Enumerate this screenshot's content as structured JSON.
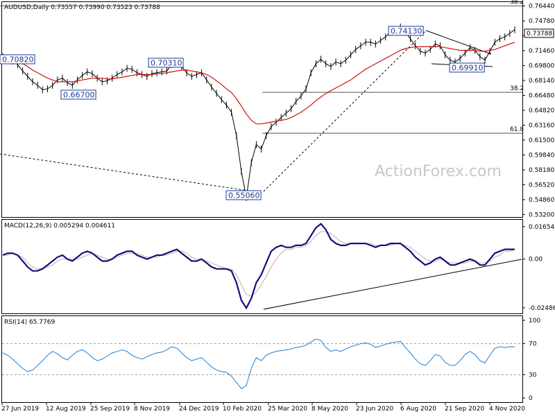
{
  "chart_data": [
    {
      "type": "line",
      "panel": "price",
      "title": "AUDUSD,Daily  0.73557 0.73990 0.73523 0.73788",
      "watermark": "ActionForex.com",
      "last_price_label": "0.73788",
      "y_ticks": [
        "0.76440",
        "0.74780",
        "0.73120",
        "0.71460",
        "0.69800",
        "0.68140",
        "0.66480",
        "0.64820",
        "0.63160",
        "0.61500",
        "0.59840",
        "0.58180",
        "0.56520",
        "0.54860",
        "0.53200"
      ],
      "y_tick_values": [
        0.7644,
        0.7478,
        0.7312,
        0.7146,
        0.698,
        0.6814,
        0.6648,
        0.6482,
        0.6316,
        0.615,
        0.5984,
        0.5818,
        0.5652,
        0.5486,
        0.532
      ],
      "ylim": [
        0.53,
        0.768
      ],
      "x_ticks": [
        "27 Jun 2019",
        "12 Aug 2019",
        "25 Sep 2019",
        "8 Nov 2019",
        "24 Dec 2019",
        "10 Feb 2020",
        "25 Mar 2020",
        "8 May 2020",
        "23 Jun 2020",
        "6 Aug 2020",
        "21 Sep 2020",
        "4 Nov 2020"
      ],
      "price_series": [
        0.708,
        0.706,
        0.703,
        0.699,
        0.692,
        0.686,
        0.68,
        0.676,
        0.671,
        0.672,
        0.676,
        0.682,
        0.684,
        0.679,
        0.676,
        0.682,
        0.687,
        0.691,
        0.689,
        0.684,
        0.68,
        0.681,
        0.684,
        0.688,
        0.691,
        0.695,
        0.694,
        0.69,
        0.688,
        0.686,
        0.689,
        0.69,
        0.691,
        0.692,
        0.699,
        0.702,
        0.697,
        0.69,
        0.686,
        0.688,
        0.69,
        0.682,
        0.674,
        0.667,
        0.66,
        0.654,
        0.646,
        0.62,
        0.58,
        0.551,
        0.59,
        0.61,
        0.605,
        0.62,
        0.63,
        0.635,
        0.64,
        0.645,
        0.65,
        0.658,
        0.664,
        0.672,
        0.69,
        0.7,
        0.705,
        0.7,
        0.697,
        0.702,
        0.7,
        0.704,
        0.71,
        0.716,
        0.72,
        0.724,
        0.724,
        0.722,
        0.726,
        0.73,
        0.735,
        0.738,
        0.741,
        0.735,
        0.728,
        0.72,
        0.714,
        0.712,
        0.716,
        0.722,
        0.72,
        0.71,
        0.704,
        0.702,
        0.706,
        0.712,
        0.718,
        0.715,
        0.708,
        0.704,
        0.714,
        0.724,
        0.728,
        0.73,
        0.734,
        0.738
      ],
      "ma_series": [
        0.706,
        0.705,
        0.704,
        0.702,
        0.7,
        0.697,
        0.693,
        0.69,
        0.687,
        0.684,
        0.682,
        0.68,
        0.68,
        0.68,
        0.68,
        0.681,
        0.682,
        0.683,
        0.684,
        0.684,
        0.684,
        0.683,
        0.683,
        0.684,
        0.685,
        0.686,
        0.687,
        0.688,
        0.688,
        0.688,
        0.688,
        0.689,
        0.689,
        0.69,
        0.691,
        0.692,
        0.693,
        0.693,
        0.692,
        0.691,
        0.69,
        0.688,
        0.685,
        0.681,
        0.677,
        0.672,
        0.668,
        0.661,
        0.653,
        0.644,
        0.637,
        0.633,
        0.633,
        0.634,
        0.635,
        0.636,
        0.637,
        0.638,
        0.64,
        0.643,
        0.646,
        0.65,
        0.654,
        0.659,
        0.663,
        0.667,
        0.67,
        0.673,
        0.676,
        0.679,
        0.682,
        0.686,
        0.69,
        0.694,
        0.697,
        0.7,
        0.703,
        0.706,
        0.709,
        0.712,
        0.715,
        0.717,
        0.718,
        0.719,
        0.719,
        0.719,
        0.719,
        0.719,
        0.719,
        0.718,
        0.717,
        0.716,
        0.715,
        0.715,
        0.715,
        0.715,
        0.714,
        0.714,
        0.715,
        0.716,
        0.718,
        0.72,
        0.722,
        0.724
      ],
      "annotations": [
        {
          "text": "0.70820",
          "x_frac": 0.0,
          "y": 0.7082
        },
        {
          "text": "0.66700",
          "x_frac": 0.11,
          "y": 0.667
        },
        {
          "text": "0.70310",
          "x_frac": 0.29,
          "y": 0.7031
        },
        {
          "text": "0.55060",
          "x_frac": 0.44,
          "y": 0.5506
        },
        {
          "text": "0.74130",
          "x_frac": 0.75,
          "y": 0.7413
        },
        {
          "text": "0.69910",
          "x_frac": 0.81,
          "y": 0.6991
        }
      ],
      "fib_levels": [
        {
          "text": "38.2",
          "y": 0.7644
        },
        {
          "text": "38.2",
          "y": 0.6682
        },
        {
          "text": "61.8",
          "y": 0.6226
        }
      ]
    },
    {
      "type": "line",
      "panel": "macd",
      "title": "MACD(12,26,9) 0.005294 0.004611",
      "y_ticks": [
        "0.01654",
        "0.00",
        "-0.02486"
      ],
      "ylim": [
        -0.027,
        0.019
      ],
      "macd_series": [
        0.002,
        0.003,
        0.003,
        0.002,
        -0.001,
        -0.004,
        -0.006,
        -0.006,
        -0.005,
        -0.003,
        -0.001,
        0.001,
        0.002,
        0.0,
        -0.001,
        0.001,
        0.003,
        0.004,
        0.003,
        0.001,
        -0.001,
        -0.001,
        0.0,
        0.002,
        0.003,
        0.004,
        0.004,
        0.002,
        0.001,
        0.0,
        0.001,
        0.002,
        0.002,
        0.003,
        0.004,
        0.005,
        0.003,
        0.001,
        -0.001,
        -0.001,
        0.0,
        -0.002,
        -0.004,
        -0.005,
        -0.005,
        -0.005,
        -0.006,
        -0.012,
        -0.021,
        -0.025,
        -0.02,
        -0.012,
        -0.008,
        -0.002,
        0.004,
        0.006,
        0.007,
        0.006,
        0.006,
        0.007,
        0.007,
        0.008,
        0.012,
        0.016,
        0.018,
        0.015,
        0.01,
        0.008,
        0.007,
        0.007,
        0.008,
        0.008,
        0.008,
        0.008,
        0.007,
        0.006,
        0.007,
        0.007,
        0.008,
        0.008,
        0.008,
        0.006,
        0.004,
        0.001,
        -0.001,
        -0.003,
        -0.002,
        0.0,
        0.001,
        -0.001,
        -0.003,
        -0.003,
        -0.002,
        -0.001,
        0.0,
        -0.001,
        -0.003,
        -0.003,
        0.0,
        0.003,
        0.004,
        0.005,
        0.005,
        0.005
      ],
      "signal_series": [
        0.002,
        0.002,
        0.003,
        0.002,
        0.001,
        -0.002,
        -0.004,
        -0.005,
        -0.005,
        -0.004,
        -0.003,
        -0.001,
        0.0,
        0.0,
        0.0,
        0.0,
        0.001,
        0.002,
        0.003,
        0.002,
        0.001,
        0.0,
        0.0,
        0.001,
        0.002,
        0.003,
        0.003,
        0.003,
        0.002,
        0.001,
        0.001,
        0.001,
        0.002,
        0.002,
        0.003,
        0.004,
        0.004,
        0.003,
        0.001,
        0.0,
        0.0,
        -0.001,
        -0.002,
        -0.003,
        -0.004,
        -0.005,
        -0.005,
        -0.008,
        -0.013,
        -0.018,
        -0.019,
        -0.017,
        -0.013,
        -0.009,
        -0.004,
        0.0,
        0.003,
        0.005,
        0.005,
        0.006,
        0.006,
        0.007,
        0.009,
        0.012,
        0.014,
        0.014,
        0.013,
        0.011,
        0.009,
        0.008,
        0.008,
        0.008,
        0.008,
        0.008,
        0.008,
        0.007,
        0.007,
        0.007,
        0.007,
        0.008,
        0.008,
        0.007,
        0.006,
        0.004,
        0.002,
        0.0,
        -0.001,
        -0.001,
        0.0,
        -0.001,
        -0.002,
        -0.002,
        -0.002,
        -0.002,
        -0.001,
        -0.001,
        -0.002,
        -0.002,
        -0.001,
        0.001,
        0.002,
        0.004,
        0.004,
        0.005
      ]
    },
    {
      "type": "line",
      "panel": "rsi",
      "title": "RSI(14) 65.7769",
      "y_ticks": [
        "100",
        "70",
        "30",
        "0"
      ],
      "ylim": [
        0,
        100
      ],
      "levels": [
        70,
        30
      ],
      "rsi_series": [
        58,
        55,
        50,
        44,
        38,
        34,
        36,
        42,
        48,
        55,
        60,
        57,
        52,
        49,
        55,
        60,
        62,
        58,
        52,
        48,
        50,
        54,
        58,
        60,
        62,
        60,
        55,
        52,
        50,
        53,
        56,
        58,
        59,
        62,
        66,
        64,
        58,
        52,
        48,
        50,
        52,
        46,
        40,
        36,
        34,
        33,
        28,
        20,
        12,
        16,
        38,
        52,
        48,
        55,
        58,
        60,
        61,
        62,
        63,
        65,
        66,
        68,
        72,
        76,
        74,
        65,
        60,
        62,
        60,
        63,
        66,
        68,
        70,
        71,
        69,
        65,
        67,
        69,
        71,
        72,
        73,
        65,
        58,
        50,
        44,
        42,
        48,
        56,
        54,
        46,
        42,
        42,
        48,
        56,
        60,
        56,
        48,
        45,
        55,
        64,
        66,
        65,
        66,
        66
      ]
    }
  ]
}
